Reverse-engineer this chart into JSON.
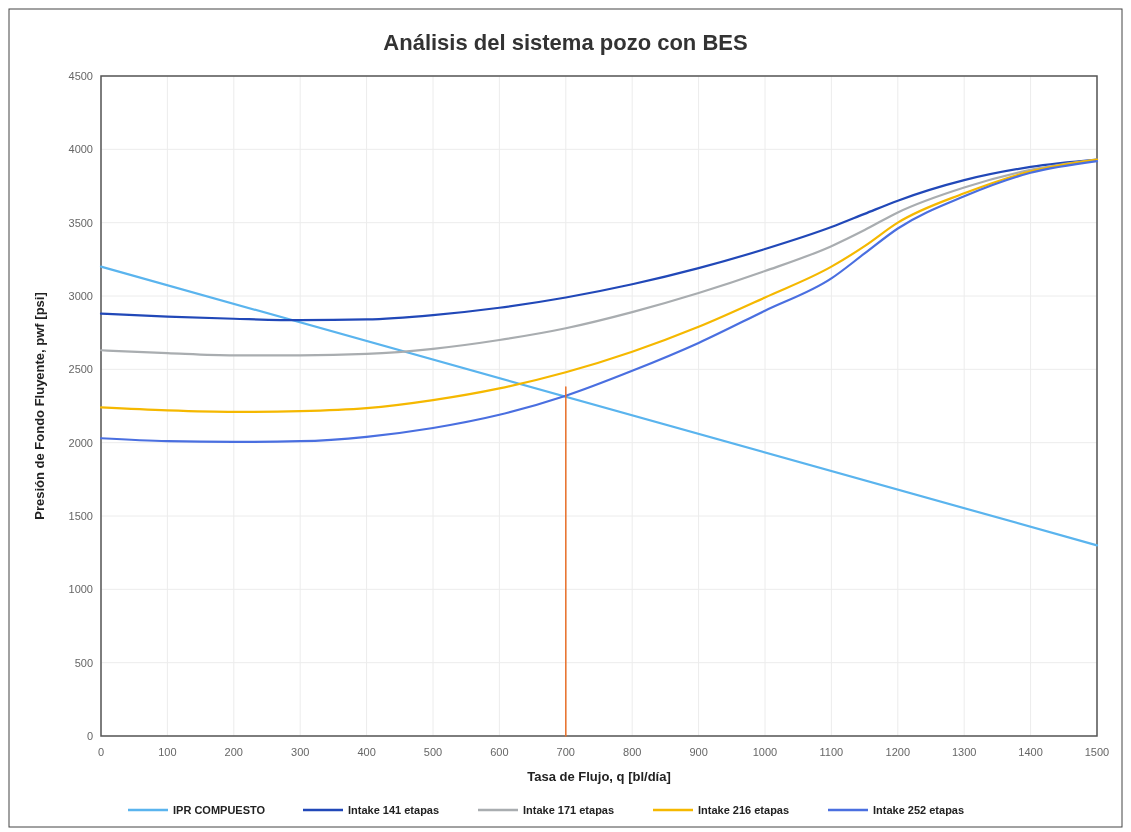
{
  "chart_data": {
    "type": "line",
    "title": "Análisis del sistema pozo con BES",
    "xlabel": "Tasa de Flujo, q [bl/día]",
    "ylabel": "Presión de Fondo Fluyente, pwf [psi]",
    "xlim": [
      0,
      1500
    ],
    "xticks": [
      0,
      100,
      200,
      300,
      400,
      500,
      600,
      700,
      800,
      900,
      1000,
      1100,
      1200,
      1300,
      1400,
      1500
    ],
    "ylim": [
      0,
      4500
    ],
    "yticks": [
      0,
      500,
      1000,
      1500,
      2000,
      2500,
      3000,
      3500,
      4000,
      4500
    ],
    "grid": true,
    "legend": "bottom",
    "marker": "none",
    "line_style": "solid",
    "series": [
      {
        "name": "IPR COMPUESTO",
        "color": "#5ab4ee",
        "x": [
          0,
          1500
        ],
        "values": [
          3200,
          1300
        ]
      },
      {
        "name": "Intake 141 etapas",
        "color": "#2148b8",
        "x": [
          0,
          100,
          200,
          300,
          400,
          500,
          600,
          700,
          800,
          900,
          1000,
          1100,
          1150,
          1200,
          1300,
          1400,
          1500
        ],
        "values": [
          2880,
          2860,
          2845,
          2835,
          2840,
          2870,
          2920,
          2990,
          3080,
          3190,
          3320,
          3470,
          3560,
          3650,
          3790,
          3880,
          3930
        ]
      },
      {
        "name": "Intake 171 etapas",
        "color": "#a9adb0",
        "x": [
          0,
          100,
          200,
          300,
          400,
          500,
          600,
          700,
          800,
          900,
          1000,
          1100,
          1150,
          1200,
          1300,
          1400,
          1500
        ],
        "values": [
          2630,
          2610,
          2595,
          2595,
          2605,
          2640,
          2700,
          2780,
          2890,
          3020,
          3170,
          3340,
          3450,
          3570,
          3740,
          3860,
          3930
        ]
      },
      {
        "name": "Intake 216 etapas",
        "color": "#f5b800",
        "x": [
          0,
          100,
          200,
          300,
          400,
          500,
          600,
          700,
          800,
          900,
          1000,
          1100,
          1150,
          1200,
          1300,
          1400,
          1500
        ],
        "values": [
          2240,
          2220,
          2210,
          2215,
          2235,
          2290,
          2370,
          2480,
          2620,
          2790,
          2990,
          3200,
          3340,
          3500,
          3700,
          3850,
          3930
        ]
      },
      {
        "name": "Intake 252 etapas",
        "color": "#4a6fe0",
        "x": [
          0,
          100,
          200,
          300,
          400,
          500,
          600,
          700,
          800,
          900,
          1000,
          1100,
          1150,
          1200,
          1300,
          1400,
          1500
        ],
        "values": [
          2030,
          2010,
          2005,
          2010,
          2040,
          2100,
          2190,
          2320,
          2490,
          2680,
          2900,
          3120,
          3290,
          3460,
          3680,
          3840,
          3920
        ]
      },
      {
        "color": "#e8702a",
        "x": [
          700,
          700
        ],
        "values": [
          0,
          2380
        ]
      }
    ]
  }
}
